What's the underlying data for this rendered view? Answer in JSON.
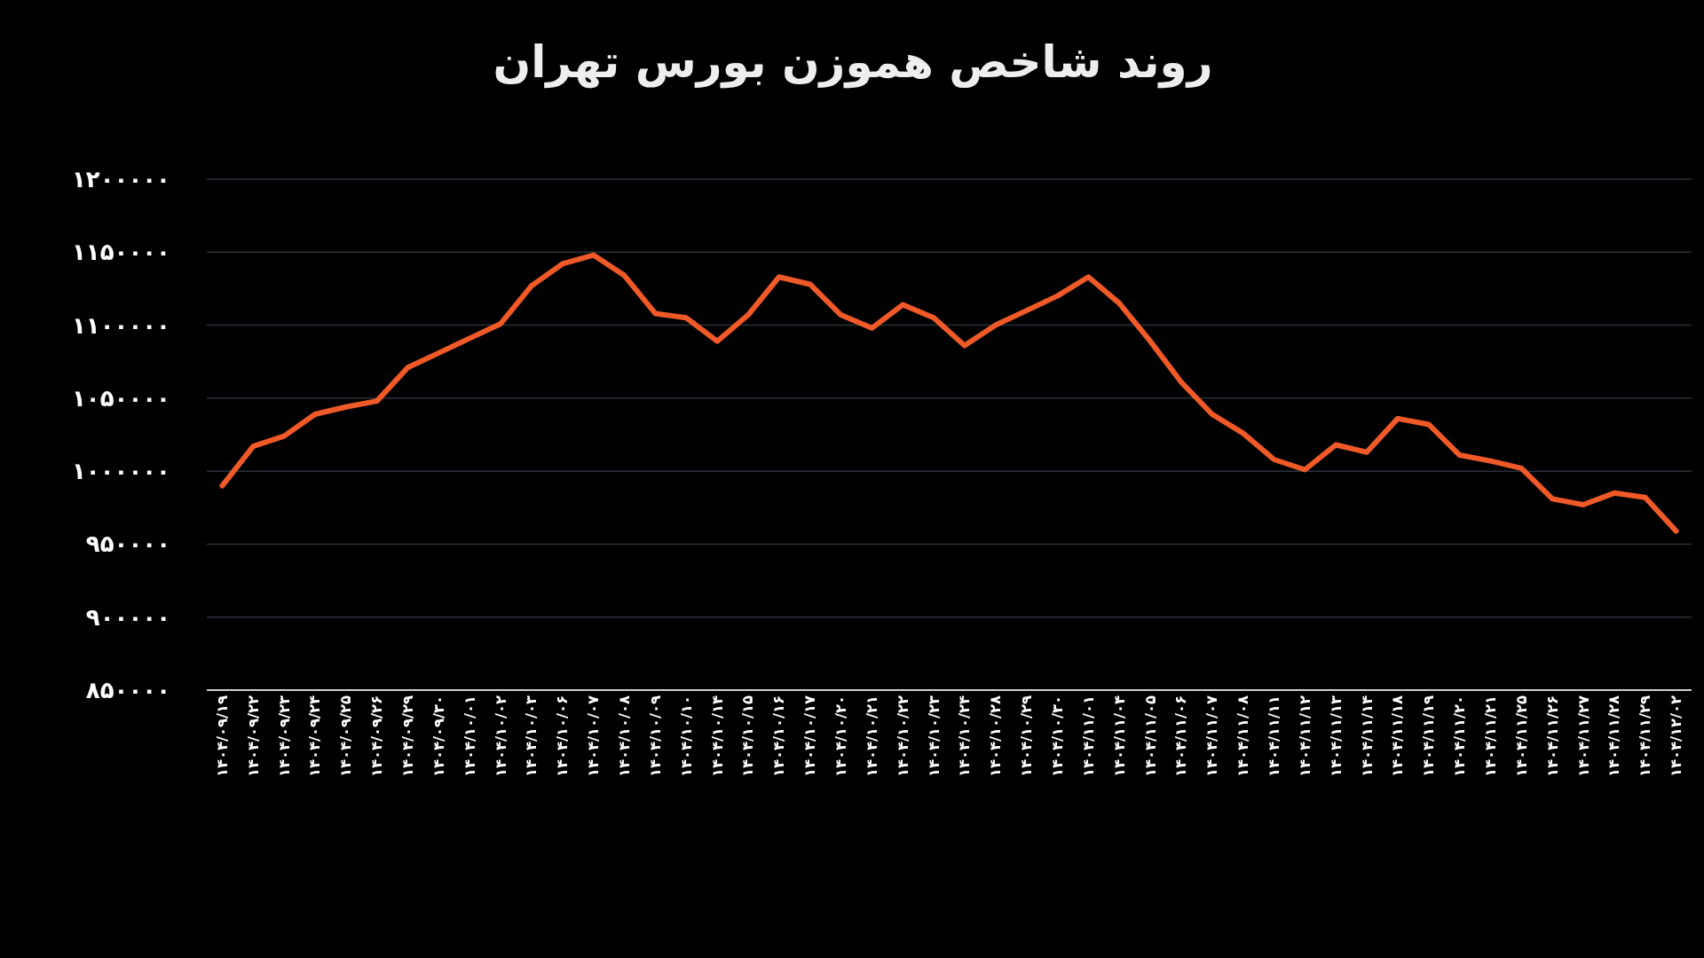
{
  "chart_data": {
    "type": "line",
    "title": "روند شاخص هموزن بورس تهران",
    "categories": [
      "۱۴۰۴/۰۹/۱۹",
      "۱۴۰۴/۰۹/۲۲",
      "۱۴۰۴/۰۹/۲۳",
      "۱۴۰۴/۰۹/۲۴",
      "۱۴۰۴/۰۹/۲۵",
      "۱۴۰۴/۰۹/۲۶",
      "۱۴۰۴/۰۹/۲۹",
      "۱۴۰۴/۰۹/۳۰",
      "۱۴۰۴/۱۰/۰۱",
      "۱۴۰۴/۱۰/۰۲",
      "۱۴۰۴/۱۰/۰۳",
      "۱۴۰۴/۱۰/۰۶",
      "۱۴۰۴/۱۰/۰۷",
      "۱۴۰۴/۱۰/۰۸",
      "۱۴۰۴/۱۰/۰۹",
      "۱۴۰۴/۱۰/۱۰",
      "۱۴۰۴/۱۰/۱۴",
      "۱۴۰۴/۱۰/۱۵",
      "۱۴۰۴/۱۰/۱۶",
      "۱۴۰۴/۱۰/۱۷",
      "۱۴۰۴/۱۰/۲۰",
      "۱۴۰۴/۱۰/۲۱",
      "۱۴۰۴/۱۰/۲۲",
      "۱۴۰۴/۱۰/۲۳",
      "۱۴۰۴/۱۰/۲۴",
      "۱۴۰۴/۱۰/۲۸",
      "۱۴۰۴/۱۰/۲۹",
      "۱۴۰۴/۱۰/۳۰",
      "۱۴۰۴/۱۱/۰۱",
      "۱۴۰۴/۱۱/۰۴",
      "۱۴۰۴/۱۱/۰۵",
      "۱۴۰۴/۱۱/۰۶",
      "۱۴۰۴/۱۱/۰۷",
      "۱۴۰۴/۱۱/۰۸",
      "۱۴۰۴/۱۱/۱۱",
      "۱۴۰۴/۱۱/۱۲",
      "۱۴۰۴/۱۱/۱۳",
      "۱۴۰۴/۱۱/۱۴",
      "۱۴۰۴/۱۱/۱۸",
      "۱۴۰۴/۱۱/۱۹",
      "۱۴۰۴/۱۱/۲۰",
      "۱۴۰۴/۱۱/۲۱",
      "۱۴۰۴/۱۱/۲۵",
      "۱۴۰۴/۱۱/۲۶",
      "۱۴۰۴/۱۱/۲۷",
      "۱۴۰۴/۱۱/۲۸",
      "۱۴۰۴/۱۱/۲۹",
      "۱۴۰۴/۱۲/۰۲"
    ],
    "values": [
      990000,
      1017000,
      1024000,
      1039000,
      1044000,
      1048000,
      1071000,
      1081000,
      1091000,
      1101000,
      1127000,
      1142000,
      1148000,
      1134000,
      1108000,
      1105000,
      1089000,
      1107000,
      1133000,
      1128000,
      1107000,
      1098000,
      1114000,
      1105000,
      1086000,
      1100000,
      1110000,
      1120000,
      1133000,
      1115000,
      1089000,
      1061000,
      1039000,
      1026000,
      1008000,
      1001000,
      1018000,
      1013000,
      1036000,
      1032000,
      1011000,
      1007000,
      1002000,
      981000,
      977000,
      985000,
      982000,
      959000
    ],
    "color": "#f05a28",
    "ylim": [
      850000,
      1200000
    ],
    "yticks": [
      {
        "value": 850000,
        "label": "۸۵۰۰۰۰"
      },
      {
        "value": 900000,
        "label": "۹۰۰۰۰۰"
      },
      {
        "value": 950000,
        "label": "۹۵۰۰۰۰"
      },
      {
        "value": 1000000,
        "label": "۱۰۰۰۰۰۰"
      },
      {
        "value": 1050000,
        "label": "۱۰۵۰۰۰۰"
      },
      {
        "value": 1100000,
        "label": "۱۱۰۰۰۰۰"
      },
      {
        "value": 1150000,
        "label": "۱۱۵۰۰۰۰"
      },
      {
        "value": 1200000,
        "label": "۱۲۰۰۰۰۰"
      }
    ],
    "grid": "y"
  }
}
